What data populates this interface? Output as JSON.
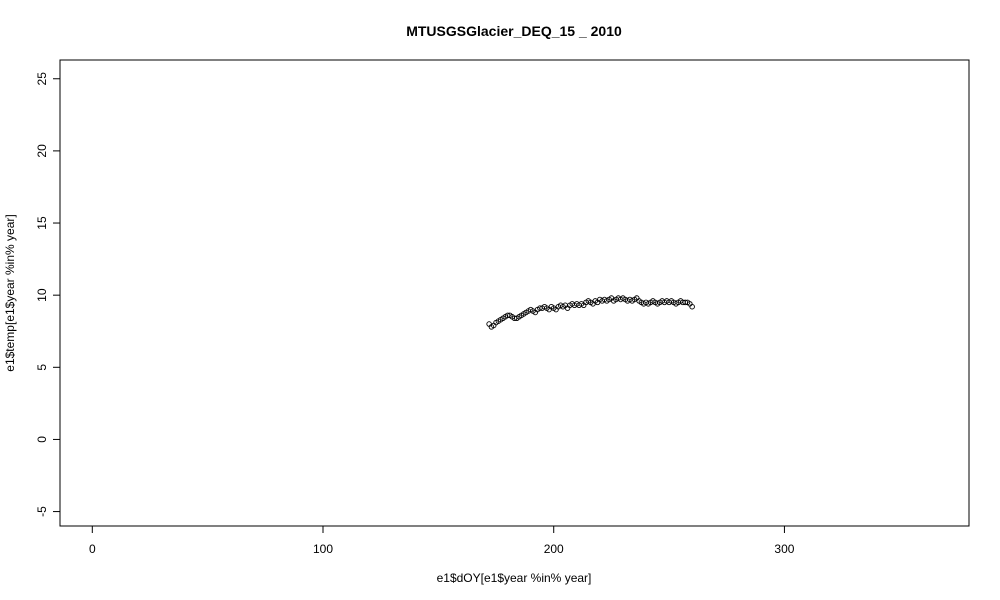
{
  "chart_data": {
    "type": "scatter",
    "title": "MTUSGSGlacier_DEQ_15 _ 2010",
    "xlabel": "e1$dOY[e1$year %in% year]",
    "ylabel": "e1$temp[e1$year %in% year]",
    "xlim": [
      -14,
      380
    ],
    "ylim": [
      -6,
      26.3
    ],
    "xticks": [
      0,
      100,
      200,
      300
    ],
    "xtick_labels": [
      "0",
      "100",
      "200",
      "300"
    ],
    "yticks": [
      -5,
      0,
      5,
      10,
      15,
      20,
      25
    ],
    "ytick_labels": [
      "-5",
      "0",
      "5",
      "10",
      "15",
      "20",
      "25"
    ],
    "grid": false,
    "legend": "none",
    "marker": "open-circle",
    "x": [
      172,
      173,
      174,
      175,
      176,
      177,
      178,
      179,
      180,
      181,
      182,
      183,
      184,
      185,
      186,
      187,
      188,
      189,
      190,
      191,
      192,
      193,
      194,
      195,
      196,
      197,
      198,
      199,
      200,
      201,
      202,
      203,
      204,
      205,
      206,
      207,
      208,
      209,
      210,
      211,
      212,
      213,
      214,
      215,
      216,
      217,
      218,
      219,
      220,
      221,
      222,
      223,
      224,
      225,
      226,
      227,
      228,
      229,
      230,
      231,
      232,
      233,
      234,
      235,
      236,
      237,
      238,
      239,
      240,
      241,
      242,
      243,
      244,
      245,
      246,
      247,
      248,
      249,
      250,
      251,
      252,
      253,
      254,
      255,
      256,
      257,
      258,
      259,
      260
    ],
    "y": [
      8.0,
      7.8,
      7.9,
      8.1,
      8.2,
      8.3,
      8.4,
      8.5,
      8.6,
      8.6,
      8.5,
      8.4,
      8.4,
      8.5,
      8.6,
      8.7,
      8.8,
      8.9,
      9.0,
      8.9,
      8.8,
      9.0,
      9.1,
      9.1,
      9.2,
      9.1,
      9.0,
      9.2,
      9.1,
      9.0,
      9.2,
      9.3,
      9.2,
      9.3,
      9.1,
      9.3,
      9.4,
      9.3,
      9.4,
      9.3,
      9.4,
      9.3,
      9.5,
      9.6,
      9.5,
      9.4,
      9.6,
      9.5,
      9.7,
      9.6,
      9.7,
      9.6,
      9.7,
      9.8,
      9.6,
      9.7,
      9.8,
      9.7,
      9.8,
      9.7,
      9.6,
      9.7,
      9.6,
      9.7,
      9.8,
      9.6,
      9.5,
      9.4,
      9.5,
      9.4,
      9.5,
      9.6,
      9.5,
      9.4,
      9.5,
      9.6,
      9.5,
      9.6,
      9.5,
      9.6,
      9.5,
      9.4,
      9.5,
      9.6,
      9.5,
      9.5,
      9.5,
      9.4,
      9.2
    ]
  }
}
